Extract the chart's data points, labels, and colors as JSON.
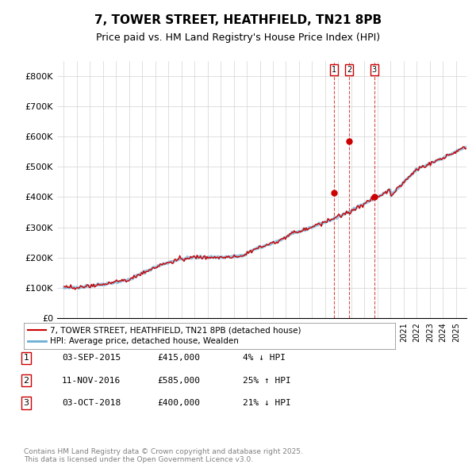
{
  "title": "7, TOWER STREET, HEATHFIELD, TN21 8PB",
  "subtitle": "Price paid vs. HM Land Registry's House Price Index (HPI)",
  "legend_line1": "7, TOWER STREET, HEATHFIELD, TN21 8PB (detached house)",
  "legend_line2": "HPI: Average price, detached house, Wealden",
  "transactions": [
    {
      "label": "1",
      "date": "2015-09-03",
      "price": 415000,
      "pct": "4%",
      "dir": "↓"
    },
    {
      "label": "2",
      "date": "2016-11-11",
      "price": 585000,
      "pct": "25%",
      "dir": "↑"
    },
    {
      "label": "3",
      "date": "2018-10-03",
      "price": 400000,
      "pct": "21%",
      "dir": "↓"
    }
  ],
  "transaction_table": [
    [
      "1",
      "03-SEP-2015",
      "£415,000",
      "4% ↓ HPI"
    ],
    [
      "2",
      "11-NOV-2016",
      "£585,000",
      "25% ↑ HPI"
    ],
    [
      "3",
      "03-OCT-2018",
      "£400,000",
      "21% ↓ HPI"
    ]
  ],
  "footnote": "Contains HM Land Registry data © Crown copyright and database right 2025.\nThis data is licensed under the Open Government Licence v3.0.",
  "hpi_color": "#6baed6",
  "price_color": "#cc0000",
  "marker_color": "#cc0000",
  "vline_color": "#cc0000",
  "ylim": [
    0,
    850000
  ],
  "yticks": [
    0,
    100000,
    200000,
    300000,
    400000,
    500000,
    600000,
    700000,
    800000
  ],
  "ytick_labels": [
    "£0",
    "£100K",
    "£200K",
    "£300K",
    "£400K",
    "£500K",
    "£600K",
    "£700K",
    "£800K"
  ]
}
